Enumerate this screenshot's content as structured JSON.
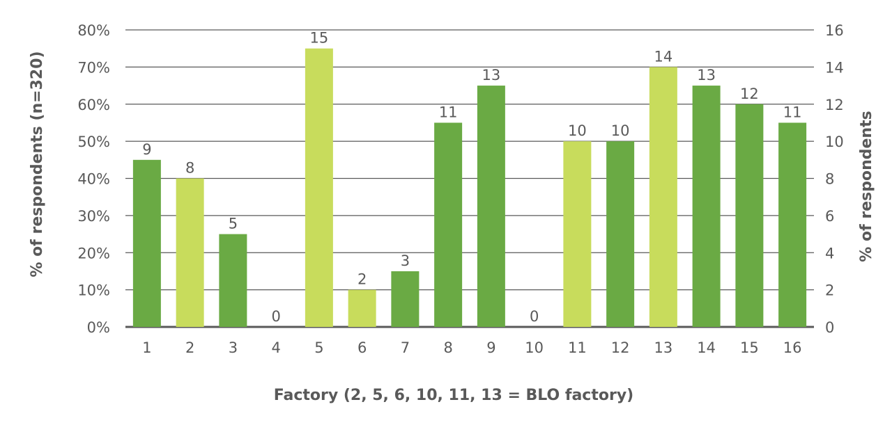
{
  "chart_data": {
    "type": "bar",
    "title": "",
    "xlabel": "Factory (2, 5, 6, 10, 11, 13 = BLO factory)",
    "ylabel": "% of respondents (n=320)",
    "y2label": "% of respondents",
    "categories": [
      "1",
      "2",
      "3",
      "4",
      "5",
      "6",
      "7",
      "8",
      "9",
      "10",
      "11",
      "12",
      "13",
      "14",
      "15",
      "16"
    ],
    "values": [
      9,
      8,
      5,
      0,
      15,
      2,
      3,
      11,
      13,
      0,
      10,
      10,
      14,
      13,
      12,
      11
    ],
    "blo_factory": [
      false,
      true,
      false,
      false,
      true,
      true,
      false,
      false,
      false,
      true,
      true,
      false,
      true,
      false,
      false,
      false
    ],
    "ylim": [
      0,
      80
    ],
    "y_ticks": [
      "0%",
      "10%",
      "20%",
      "30%",
      "40%",
      "50%",
      "60%",
      "70%",
      "80%"
    ],
    "y2lim": [
      0,
      16
    ],
    "y2_ticks": [
      "0",
      "2",
      "4",
      "6",
      "8",
      "10",
      "12",
      "14",
      "16"
    ],
    "grid": true,
    "colors": {
      "non_blo": "#6aaa44",
      "blo": "#c8dc5c",
      "grid": "#595959",
      "text": "#595959"
    }
  }
}
